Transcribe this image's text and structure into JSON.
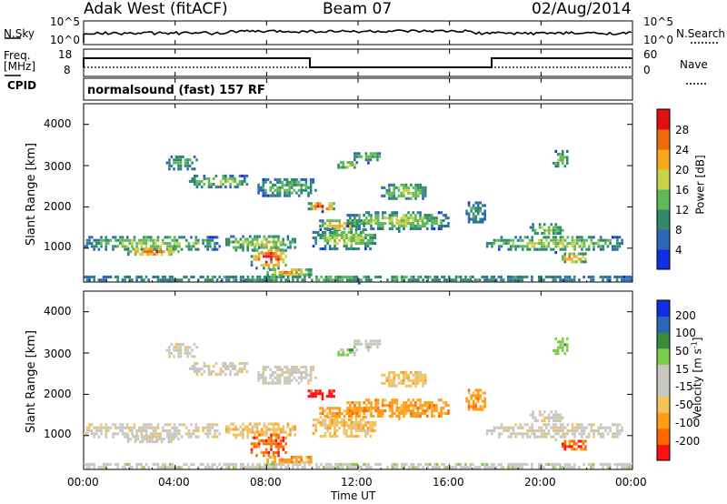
{
  "header": {
    "station": "Adak West (fitACF)",
    "beam": "Beam 07",
    "date": "02/Aug/2014"
  },
  "noise_panel": {
    "left_label": "N.Sky",
    "right_label": "N.Search",
    "left_ticks": [
      "10^5",
      "10^0"
    ],
    "right_ticks": [
      "10^5",
      "10^0"
    ]
  },
  "freq_panel": {
    "left_label_line1": "Freq.",
    "left_label_line2": "[MHz]",
    "left_ticks": [
      "18",
      "8"
    ],
    "right_ticks": [
      "60",
      "0"
    ],
    "right_label": "Nave",
    "cpid_label": "CPID",
    "cpid_text": "normalsound (fast) 157 RF"
  },
  "x_axis": {
    "tick_labels": [
      "00:00",
      "04:00",
      "08:00",
      "12:00",
      "16:00",
      "20:00",
      "00:00"
    ],
    "label": "Time UT"
  },
  "colors": {
    "power_scale": [
      "#1030e0",
      "#2c66b8",
      "#2f8a6a",
      "#5fb85a",
      "#c8d24a",
      "#f6a81e",
      "#f06a0c",
      "#e01010"
    ],
    "velocity_scale": [
      "#ff1010",
      "#ff6a00",
      "#ff9d18",
      "#f2c35a",
      "#c8c8c0",
      "#c8c8c0",
      "#7ccc4a",
      "#3d8a3a",
      "#2c66b8",
      "#1030e0"
    ]
  },
  "chart_data": [
    {
      "type": "heatmap",
      "name": "power",
      "ylabel": "Slant Range [km]",
      "y_ticks": [
        "1000",
        "2000",
        "3000",
        "4000"
      ],
      "ylim": [
        180,
        4500
      ],
      "xlim_hours": [
        0,
        24
      ],
      "colorbar_label": "Power [dB]",
      "colorbar_ticks": [
        "4",
        "8",
        "12",
        "16",
        "20",
        "24",
        "28"
      ],
      "colorbar_range": [
        0,
        32
      ]
    },
    {
      "type": "heatmap",
      "name": "velocity",
      "ylabel": "Slant Range [km]",
      "y_ticks": [
        "1000",
        "2000",
        "3000",
        "4000"
      ],
      "ylim": [
        180,
        4500
      ],
      "xlim_hours": [
        0,
        24
      ],
      "colorbar_label": "Velocity [m s",
      "colorbar_label_sup": "-1",
      "colorbar_label_tail": "]",
      "colorbar_ticks": [
        "200",
        "100",
        "50",
        "15",
        "-15",
        "-50",
        "-100",
        "-200"
      ]
    }
  ]
}
